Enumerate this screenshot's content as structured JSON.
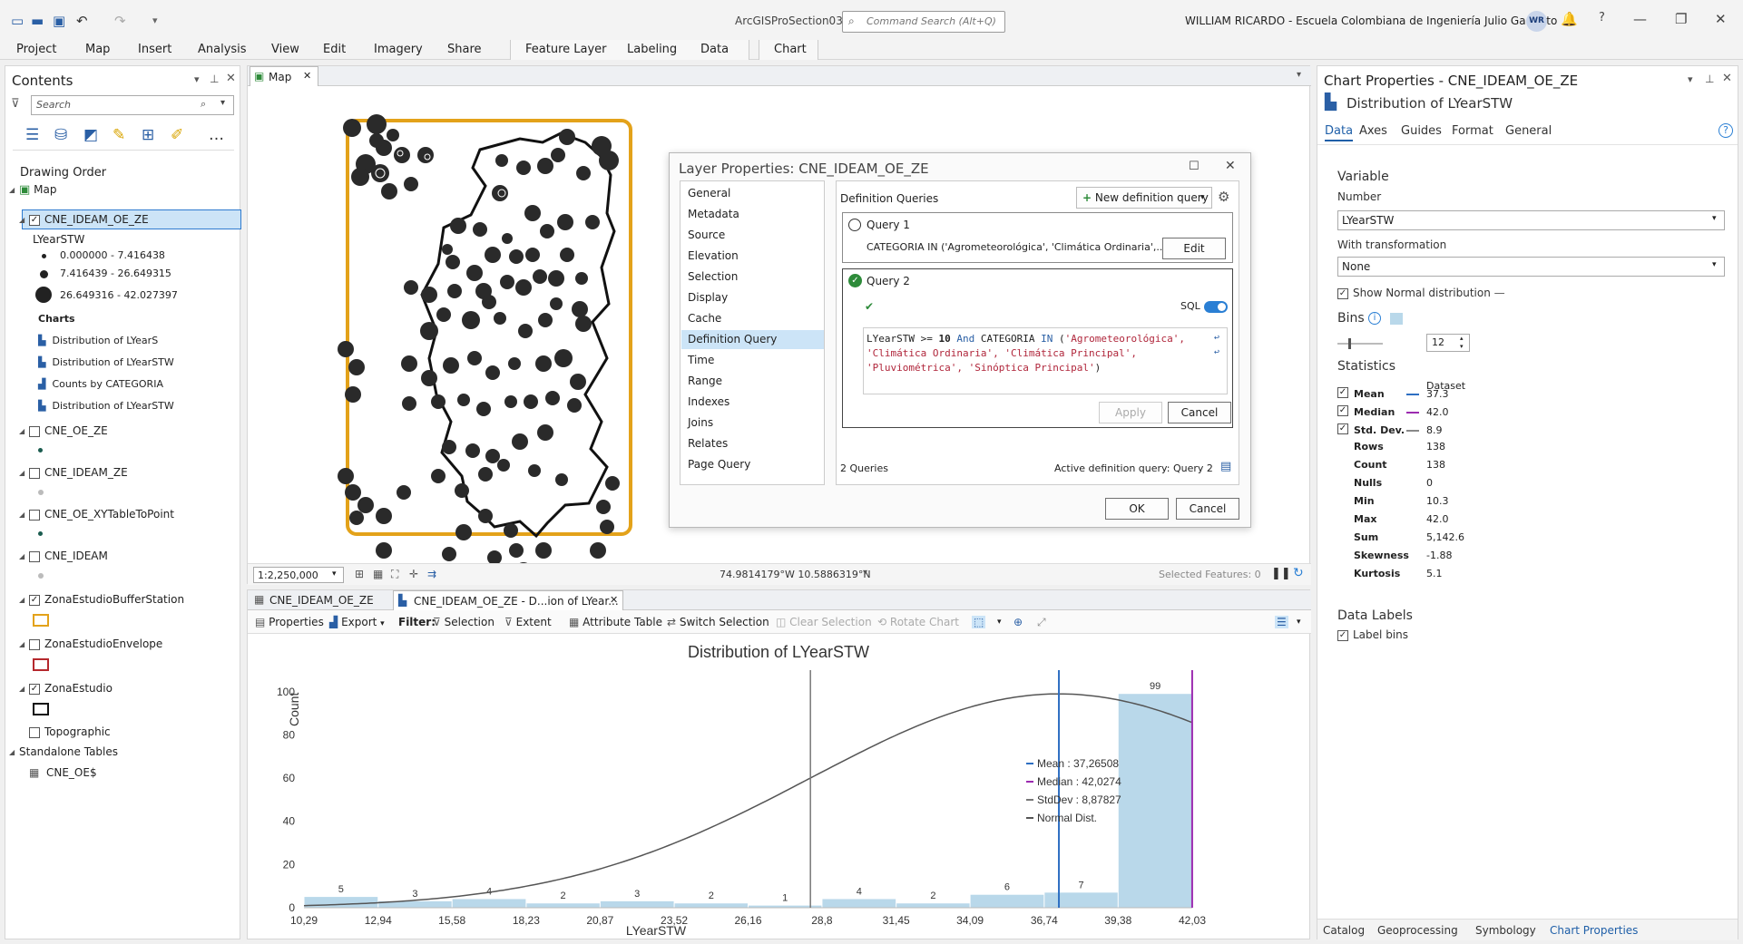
{
  "titlebar": {
    "app_title": "ArcGISProSection03",
    "command_search_placeholder": "Command Search (Alt+Q)",
    "user": "WILLIAM RICARDO  - Escuela Colombiana de Ingeniería Julio Garavito",
    "avatar": "WR"
  },
  "ribbon": {
    "tabs": [
      "Project",
      "Map",
      "Insert",
      "Analysis",
      "View",
      "Edit",
      "Imagery",
      "Share"
    ],
    "feature_layer_tabs": [
      "Feature Layer",
      "Labeling",
      "Data"
    ],
    "chart_tab": "Chart"
  },
  "contents": {
    "title": "Contents",
    "search_placeholder": "Search",
    "drawing_order": "Drawing Order",
    "map": "Map",
    "layer1": {
      "name": "CNE_IDEAM_OE_ZE",
      "field": "LYearSTW",
      "classes": [
        "0.000000 - 7.416438",
        "7.416439 - 26.649315",
        "26.649316 - 42.027397"
      ],
      "charts_header": "Charts",
      "charts": [
        "Distribution of LYearS",
        "Distribution of LYearSTW",
        "Counts by CATEGORIA",
        "Distribution of LYearSTW"
      ]
    },
    "layers": [
      {
        "name": "CNE_OE_ZE",
        "checked": false
      },
      {
        "name": "CNE_IDEAM_ZE",
        "checked": false
      },
      {
        "name": "CNE_OE_XYTableToPoint",
        "checked": false
      },
      {
        "name": "CNE_IDEAM",
        "checked": false
      },
      {
        "name": "ZonaEstudioBufferStation",
        "checked": true
      },
      {
        "name": "ZonaEstudioEnvelope",
        "checked": false
      },
      {
        "name": "ZonaEstudio",
        "checked": true
      }
    ],
    "topographic": "Topographic",
    "standalone": "Standalone Tables",
    "table": "CNE_OE$"
  },
  "map": {
    "tab": "Map",
    "scale": "1:2,250,000",
    "coords": "74.9814179°W 10.5886319°N",
    "selected_features": "Selected Features: 0"
  },
  "dialog": {
    "title": "Layer Properties: CNE_IDEAM_OE_ZE",
    "nav": [
      "General",
      "Metadata",
      "Source",
      "Elevation",
      "Selection",
      "Display",
      "Cache",
      "Definition Query",
      "Time",
      "Range",
      "Indexes",
      "Joins",
      "Relates",
      "Page Query"
    ],
    "section_title": "Definition Queries",
    "new_query_btn": "New definition query",
    "query1_name": "Query 1",
    "query1_text": "CATEGORIA IN ('Agrometeorológica', 'Climática Ordinaria',...",
    "edit_btn": "Edit",
    "query2_name": "Query 2",
    "sql_label": "SQL",
    "apply_btn": "Apply",
    "cancel_btn": "Cancel",
    "queries_count": "2 Queries",
    "active_query": "Active definition query: Query 2",
    "ok_btn": "OK",
    "cancel_main_btn": "Cancel",
    "sql_lines": {
      "l1_field": "LYearSTW",
      "l1_op": ">=",
      "l1_num": "10",
      "l1_and": "And",
      "l1_cat": "CATEGORIA",
      "l1_in": "IN",
      "l1_open": "(",
      "l1_s1": "'Agrometeorológica',",
      "l2_s2": "'Climática Ordinaria',",
      "l2_s3": "'Climática Principal',",
      "l3_s4": "'Pluviométrica',",
      "l3_s5": "'Sinóptica Principal'",
      "l3_close": ")"
    }
  },
  "chart_props": {
    "title": "Chart Properties - CNE_IDEAM_OE_ZE",
    "subtitle": "Distribution of LYearSTW",
    "tabs": [
      "Data",
      "Axes",
      "Guides",
      "Format",
      "General"
    ],
    "variable_head": "Variable",
    "number_label": "Number",
    "number_value": "LYearSTW",
    "transform_label": "With transformation",
    "transform_value": "None",
    "show_normal": "Show Normal distribution",
    "bins_label": "Bins",
    "bins_value": "12",
    "statistics_head": "Statistics",
    "dataset_col": "Dataset",
    "stats_checked": [
      {
        "label": "Mean",
        "value": "37.3",
        "color": "#2e6fc2"
      },
      {
        "label": "Median",
        "value": "42.0",
        "color": "#9c2bb0"
      },
      {
        "label": "Std. Dev.",
        "value": "8.9",
        "color": "#888888"
      }
    ],
    "stats": [
      {
        "label": "Rows",
        "value": "138"
      },
      {
        "label": "Count",
        "value": "138"
      },
      {
        "label": "Nulls",
        "value": "0"
      },
      {
        "label": "Min",
        "value": "10.3"
      },
      {
        "label": "Max",
        "value": "42.0"
      },
      {
        "label": "Sum",
        "value": "5,142.6"
      },
      {
        "label": "Skewness",
        "value": "-1.88"
      },
      {
        "label": "Kurtosis",
        "value": "5.1"
      }
    ],
    "data_labels_head": "Data Labels",
    "label_bins": "Label bins",
    "bottom_tabs": [
      "Catalog",
      "Geoprocessing",
      "Symbology",
      "Chart Properties"
    ]
  },
  "chart_pane": {
    "tab1": "CNE_IDEAM_OE_ZE",
    "tab2": "CNE_IDEAM_OE_ZE - D...ion of LYear...",
    "toolbar": {
      "properties": "Properties",
      "export": "Export",
      "filter": "Filter:",
      "selection": "Selection",
      "extent": "Extent",
      "attribute_table": "Attribute Table",
      "switch_selection": "Switch Selection",
      "clear_selection": "Clear Selection",
      "rotate_chart": "Rotate Chart"
    }
  },
  "chart_data": {
    "type": "bar",
    "title": "Distribution of LYearSTW",
    "xlabel": "LYearSTW",
    "ylabel": "Count",
    "ylim": [
      0,
      110
    ],
    "yticks": [
      0,
      20,
      40,
      60,
      80,
      100
    ],
    "bin_edges": [
      "10,29",
      "12,94",
      "15,58",
      "18,23",
      "20,87",
      "23,52",
      "26,16",
      "28,8",
      "31,45",
      "34,09",
      "36,74",
      "39,38",
      "42,03"
    ],
    "bin_edge_values": [
      10.29,
      12.94,
      15.58,
      18.23,
      20.87,
      23.52,
      26.16,
      28.8,
      31.45,
      34.09,
      36.74,
      39.38,
      42.03
    ],
    "values": [
      5,
      3,
      4,
      2,
      3,
      2,
      1,
      4,
      2,
      6,
      7,
      99
    ],
    "mean": 37.26508,
    "median": 42.0274,
    "stddev": 8.87827,
    "normal_peak": 99,
    "legend": [
      "Mean : 37,26508",
      "Median : 42,0274",
      "StdDev : 8,87827",
      "Normal Dist."
    ],
    "legend_position": "right",
    "colors": {
      "bar": "#b9d8ea",
      "mean": "#2e6fc2",
      "median": "#9c2bb0",
      "stddev": "#777777",
      "normal": "#555555"
    }
  }
}
